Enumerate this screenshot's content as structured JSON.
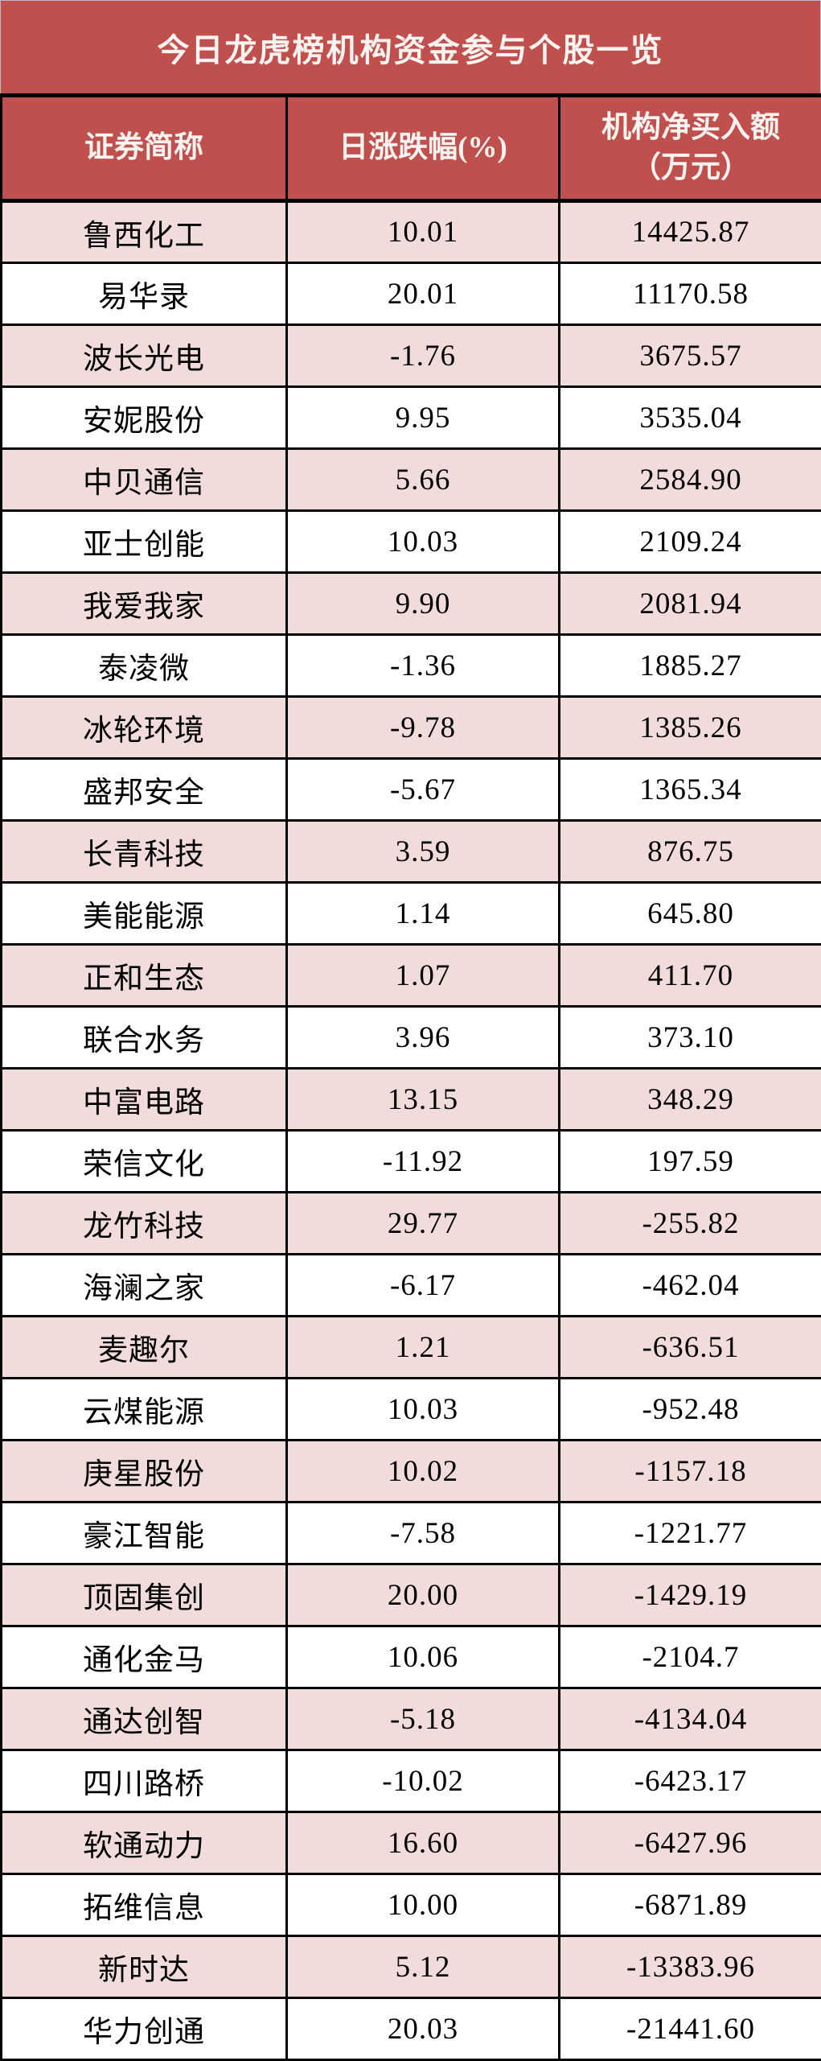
{
  "title": "今日龙虎榜机构资金参与个股一览",
  "columns": [
    "证券简称",
    "日涨跌幅(%)",
    "机构净买入额\n（万元）"
  ],
  "colors": {
    "banner_bg": "#c0504d",
    "header_bg": "#c0504d",
    "header_text": "#fdf4f2",
    "row_alt_bg": "#f2dcdb",
    "row_bg": "#ffffff",
    "cell_text": "#000000",
    "grid_border": "#000000"
  },
  "chart_data": {
    "type": "table",
    "title": "今日龙虎榜机构资金参与个股一览",
    "columns": [
      "证券简称",
      "日涨跌幅(%)",
      "机构净买入额（万元）"
    ],
    "rows": [
      [
        "鲁西化工",
        "10.01",
        "14425.87"
      ],
      [
        "易华录",
        "20.01",
        "11170.58"
      ],
      [
        "波长光电",
        "-1.76",
        "3675.57"
      ],
      [
        "安妮股份",
        "9.95",
        "3535.04"
      ],
      [
        "中贝通信",
        "5.66",
        "2584.90"
      ],
      [
        "亚士创能",
        "10.03",
        "2109.24"
      ],
      [
        "我爱我家",
        "9.90",
        "2081.94"
      ],
      [
        "泰凌微",
        "-1.36",
        "1885.27"
      ],
      [
        "冰轮环境",
        "-9.78",
        "1385.26"
      ],
      [
        "盛邦安全",
        "-5.67",
        "1365.34"
      ],
      [
        "长青科技",
        "3.59",
        "876.75"
      ],
      [
        "美能能源",
        "1.14",
        "645.80"
      ],
      [
        "正和生态",
        "1.07",
        "411.70"
      ],
      [
        "联合水务",
        "3.96",
        "373.10"
      ],
      [
        "中富电路",
        "13.15",
        "348.29"
      ],
      [
        "荣信文化",
        "-11.92",
        "197.59"
      ],
      [
        "龙竹科技",
        "29.77",
        "-255.82"
      ],
      [
        "海澜之家",
        "-6.17",
        "-462.04"
      ],
      [
        "麦趣尔",
        "1.21",
        "-636.51"
      ],
      [
        "云煤能源",
        "10.03",
        "-952.48"
      ],
      [
        "庚星股份",
        "10.02",
        "-1157.18"
      ],
      [
        "豪江智能",
        "-7.58",
        "-1221.77"
      ],
      [
        "顶固集创",
        "20.00",
        "-1429.19"
      ],
      [
        "通化金马",
        "10.06",
        "-2104.7"
      ],
      [
        "通达创智",
        "-5.18",
        "-4134.04"
      ],
      [
        "四川路桥",
        "-10.02",
        "-6423.17"
      ],
      [
        "软通动力",
        "16.60",
        "-6427.96"
      ],
      [
        "拓维信息",
        "10.00",
        "-6871.89"
      ],
      [
        "新时达",
        "5.12",
        "-13383.96"
      ],
      [
        "华力创通",
        "20.03",
        "-21441.60"
      ]
    ]
  }
}
